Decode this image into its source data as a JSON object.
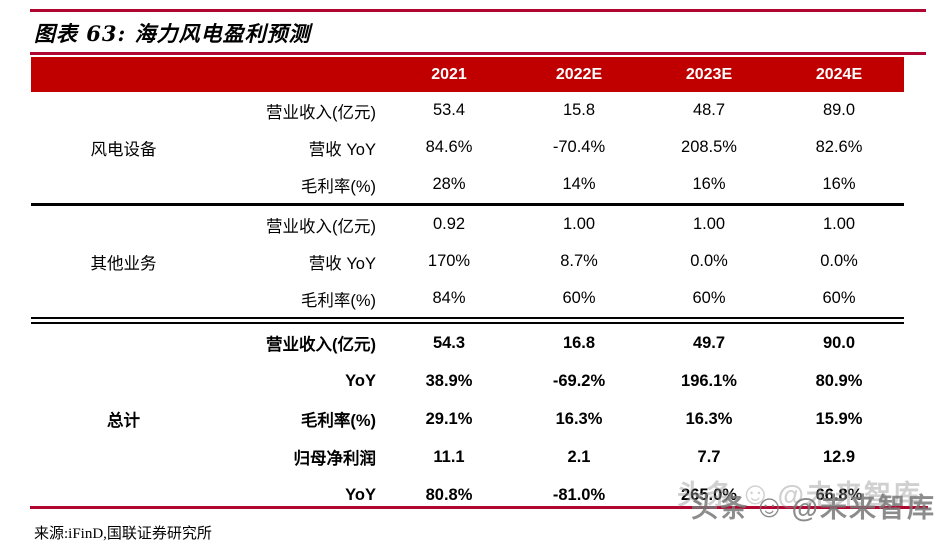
{
  "figure": {
    "title": "图表 63: 海力风电盈利预测",
    "source": "来源:iFinD,国联证券研究所",
    "watermark": {
      "prefix": "头条",
      "smiley": "☺",
      "suffix": "@未来智库"
    }
  },
  "colors": {
    "header_bg": "#C00000",
    "rule_red": "#B1062F",
    "header_text": "#FFFFFF",
    "body_text": "#000000"
  },
  "table": {
    "year_columns": [
      "2021",
      "2022E",
      "2023E",
      "2024E"
    ],
    "groups": [
      {
        "name": "风电设备",
        "rows": [
          {
            "label": "营业收入(亿元)",
            "values": [
              "53.4",
              "15.8",
              "48.7",
              "89.0"
            ]
          },
          {
            "label": "营收 YoY",
            "values": [
              "84.6%",
              "-70.4%",
              "208.5%",
              "82.6%"
            ]
          },
          {
            "label": "毛利率(%)",
            "values": [
              "28%",
              "14%",
              "16%",
              "16%"
            ]
          }
        ]
      },
      {
        "name": "其他业务",
        "rows": [
          {
            "label": "营业收入(亿元)",
            "values": [
              "0.92",
              "1.00",
              "1.00",
              "1.00"
            ]
          },
          {
            "label": "营收 YoY",
            "values": [
              "170%",
              "8.7%",
              "0.0%",
              "0.0%"
            ]
          },
          {
            "label": "毛利率(%)",
            "values": [
              "84%",
              "60%",
              "60%",
              "60%"
            ]
          }
        ]
      },
      {
        "name": "总计",
        "rows": [
          {
            "label": "营业收入(亿元)",
            "values": [
              "54.3",
              "16.8",
              "49.7",
              "90.0"
            ]
          },
          {
            "label": "YoY",
            "values": [
              "38.9%",
              "-69.2%",
              "196.1%",
              "80.9%"
            ]
          },
          {
            "label": "毛利率(%)",
            "values": [
              "29.1%",
              "16.3%",
              "16.3%",
              "15.9%"
            ]
          },
          {
            "label": "归母净利润",
            "values": [
              "11.1",
              "2.1",
              "7.7",
              "12.9"
            ]
          },
          {
            "label": "YoY",
            "values": [
              "80.8%",
              "-81.0%",
              "265.0%",
              "66.8%"
            ]
          }
        ]
      }
    ]
  }
}
